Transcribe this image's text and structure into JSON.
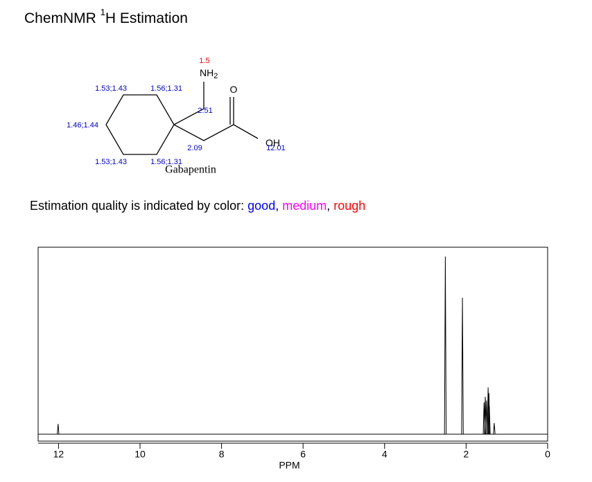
{
  "header": {
    "title": {
      "main": "ChemNMR",
      "sup": "1",
      "rest": "H Estimation"
    }
  },
  "molecule": {
    "name": "Gabapentin",
    "atoms": [
      {
        "text": "NH",
        "sub": "2"
      },
      {
        "text": "O"
      },
      {
        "text": "OH"
      }
    ],
    "shifts": [
      {
        "text": "1.5",
        "color": "#e00000"
      },
      {
        "text": "2.51",
        "color": "#0000c8"
      },
      {
        "text": "2.09",
        "color": "#0000c8"
      },
      {
        "text": "12.01",
        "color": "#0000c8"
      },
      {
        "text": "1.53;1.43",
        "color": "#0000c8"
      },
      {
        "text": "1.56;1.31",
        "color": "#0000c8"
      },
      {
        "text": "1.46;1.44",
        "color": "#0000c8"
      },
      {
        "text": "1.53;1.43",
        "color": "#0000c8"
      },
      {
        "text": "1.56;1.31",
        "color": "#0000c8"
      }
    ]
  },
  "quality": {
    "text": "Estimation quality is indicated by color:",
    "separator": ",",
    "items": [
      {
        "text": "good",
        "color": "#0000ff"
      },
      {
        "text": "medium",
        "color": "#ff00ff"
      },
      {
        "text": "rough",
        "color": "#ff0000"
      }
    ]
  },
  "chart_data": {
    "type": "spectrum",
    "x_label": "PPM",
    "xlim": [
      12.5,
      0
    ],
    "xticks": [
      12,
      10,
      8,
      6,
      4,
      2,
      0
    ],
    "ylim": [
      0,
      1
    ],
    "color": "#000000",
    "x": [
      12.01,
      2.51,
      2.09,
      1.56,
      1.53,
      1.5,
      1.46,
      1.44,
      1.43,
      1.31
    ],
    "values": [
      0.055,
      0.95,
      0.73,
      0.17,
      0.2,
      0.18,
      0.25,
      0.22,
      0.15,
      0.06
    ]
  }
}
